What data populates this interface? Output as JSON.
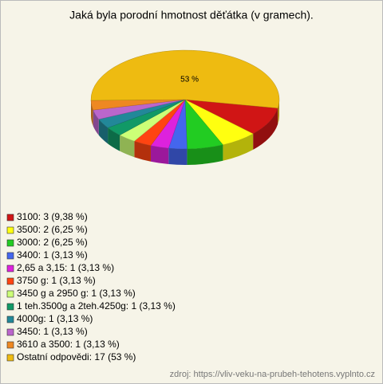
{
  "chart_data": {
    "type": "pie",
    "title": "Jaká byla porodní hmotnost děťátka (v gramech).",
    "categories": [
      "3100: 3 (9,38 %)",
      "3500: 2 (6,25 %)",
      "3000: 2 (6,25 %)",
      "3400: 1 (3,13 %)",
      "2,65 a 3,15: 1 (3,13 %)",
      "3750 g: 1 (3,13 %)",
      "3450 g a 2950 g: 1 (3,13 %)",
      "1 teh.3500g a 2teh.4250g: 1 (3,13 %)",
      "4000g: 1 (3,13 %)",
      "3450: 1 (3,13 %)",
      "3610 a 3500: 1 (3,13 %)",
      "Ostatní odpovědi: 17 (53 %)"
    ],
    "values": [
      9.38,
      6.25,
      6.25,
      3.13,
      3.13,
      3.13,
      3.13,
      3.13,
      3.13,
      3.13,
      3.13,
      53
    ],
    "value_labels": [
      null,
      null,
      null,
      null,
      null,
      null,
      null,
      null,
      null,
      null,
      null,
      "53 %"
    ],
    "colors": [
      "#d01515",
      "#ffff10",
      "#22cc22",
      "#4466ee",
      "#dd22dd",
      "#ff4411",
      "#ccff77",
      "#119966",
      "#228899",
      "#bb66cc",
      "#ee8822",
      "#eebb11"
    ],
    "source": "zdroj: https://vliv-veku-na-prubeh-tehotens.vyplnto.cz"
  }
}
